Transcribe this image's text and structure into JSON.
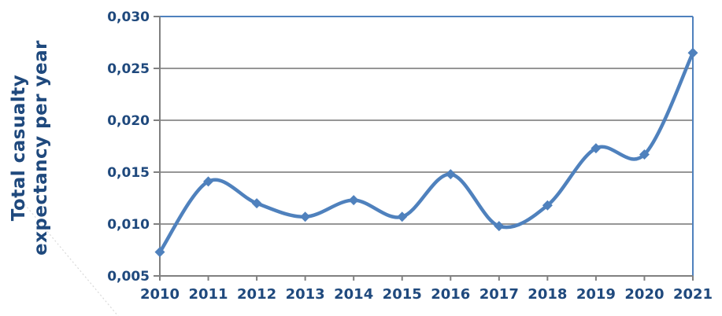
{
  "chart_data": {
    "type": "line",
    "title": "",
    "ylabel_lines": [
      "Total casualty",
      "expectancy per year"
    ],
    "xlabel": "",
    "categories": [
      "2010",
      "2011",
      "2012",
      "2013",
      "2014",
      "2015",
      "2016",
      "2017",
      "2018",
      "2019",
      "2020",
      "2021"
    ],
    "series": [
      {
        "name": "Total casualty expectancy per year",
        "values": [
          0.0073,
          0.0141,
          0.012,
          0.0107,
          0.0123,
          0.0107,
          0.0148,
          0.0098,
          0.0118,
          0.0173,
          0.0167,
          0.0265
        ]
      }
    ],
    "ylim": [
      0.005,
      0.03
    ],
    "y_ticks": [
      {
        "value": 0.005,
        "label": "0,005"
      },
      {
        "value": 0.01,
        "label": "0,010"
      },
      {
        "value": 0.015,
        "label": "0,015"
      },
      {
        "value": 0.02,
        "label": "0,020"
      },
      {
        "value": 0.025,
        "label": "0,025"
      },
      {
        "value": 0.03,
        "label": "0,030"
      }
    ],
    "grid": true,
    "legend": false,
    "smooth": true,
    "marker": "diamond",
    "colors": {
      "line": "#4f81bd",
      "marker": "#4f81bd",
      "grid": "#878787",
      "axis": "#808080",
      "text": "#1f497d",
      "border_top_right": "#4f81bd",
      "artifact": "#d9d9d9",
      "background": "#ffffff"
    }
  }
}
